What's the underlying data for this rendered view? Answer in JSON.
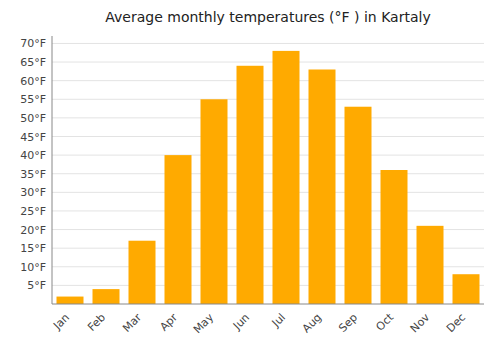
{
  "chart_data": {
    "type": "bar",
    "title": "Average monthly temperatures (°F ) in Kartaly",
    "categories": [
      "Jan",
      "Feb",
      "Mar",
      "Apr",
      "May",
      "Jun",
      "Jul",
      "Aug",
      "Sep",
      "Oct",
      "Nov",
      "Dec"
    ],
    "values": [
      2,
      4,
      17,
      40,
      55,
      64,
      68,
      63,
      53,
      36,
      21,
      8
    ],
    "color": "#FFAA00",
    "ylim": [
      0,
      72
    ],
    "yticks": [
      {
        "value": 5,
        "label": "5°F"
      },
      {
        "value": 10,
        "label": "10°F"
      },
      {
        "value": 15,
        "label": "15°F"
      },
      {
        "value": 20,
        "label": "20°F"
      },
      {
        "value": 25,
        "label": "25°F"
      },
      {
        "value": 30,
        "label": "30°F"
      },
      {
        "value": 35,
        "label": "35°F"
      },
      {
        "value": 40,
        "label": "40°F"
      },
      {
        "value": 45,
        "label": "45°F"
      },
      {
        "value": 50,
        "label": "50°F"
      },
      {
        "value": 55,
        "label": "55°F"
      },
      {
        "value": 60,
        "label": "60°F"
      },
      {
        "value": 65,
        "label": "65°F"
      },
      {
        "value": 70,
        "label": "70°F"
      }
    ],
    "grid": true
  }
}
